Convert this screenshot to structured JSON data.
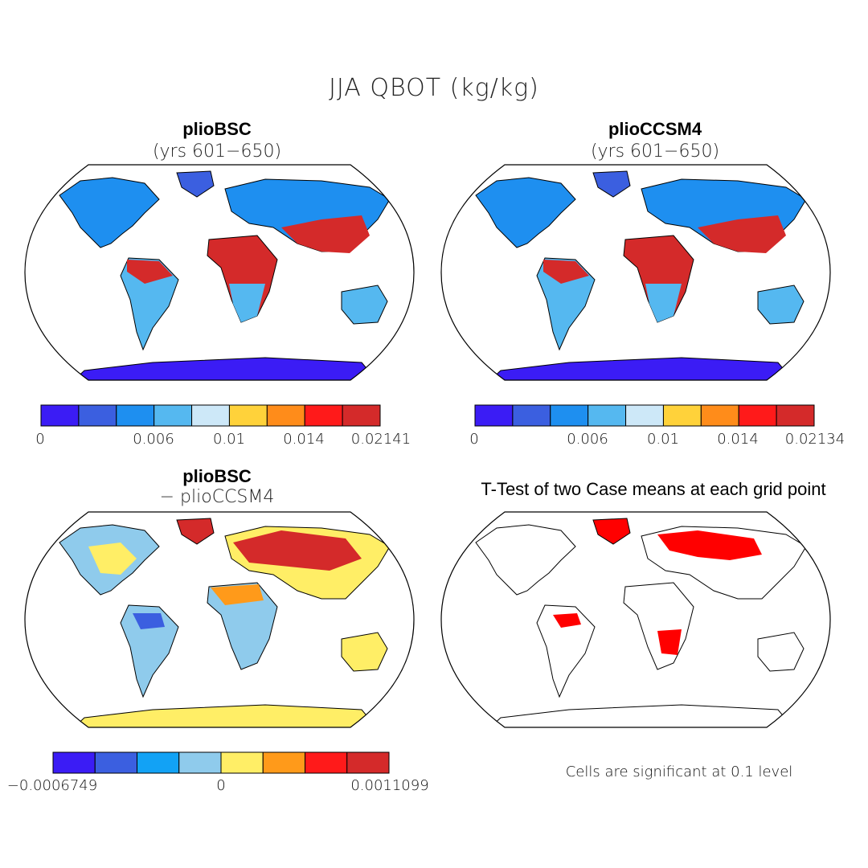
{
  "title": "JJA QBOT (kg/kg)",
  "panels": {
    "top_left": {
      "title": "plioBSC",
      "subtitle": "(yrs 601−650)"
    },
    "top_right": {
      "title": "plioCCSM4",
      "subtitle": "(yrs 601−650)"
    },
    "bottom_left": {
      "title": "plioBSC",
      "subtitle": "− plioCCSM4"
    },
    "bottom_right": {
      "title": "T-Test of two Case means at each grid point",
      "note": "Cells are significant at 0.1 level",
      "significance_color": "#ff0000"
    }
  },
  "colorbars": {
    "top_left": {
      "colors": [
        "#3b1cf5",
        "#3b5fe0",
        "#1e8ff0",
        "#55b8f0",
        "#cde8f8",
        "#ffd23a",
        "#ff8c1a",
        "#ff1a1a",
        "#d42a2a"
      ],
      "labels": [
        "0",
        "0.006",
        "0.01",
        "0.014",
        "0.02141"
      ]
    },
    "top_right": {
      "colors": [
        "#3b1cf5",
        "#3b5fe0",
        "#1e8ff0",
        "#55b8f0",
        "#cde8f8",
        "#ffd23a",
        "#ff8c1a",
        "#ff1a1a",
        "#d42a2a"
      ],
      "labels": [
        "0",
        "0.006",
        "0.01",
        "0.014",
        "0.02134"
      ]
    },
    "bottom_left": {
      "colors": [
        "#3b1cf5",
        "#3b5fe0",
        "#12a2f5",
        "#8fcbec",
        "#ffee66",
        "#ff9a1a",
        "#ff1a1a",
        "#d42a2a"
      ],
      "labels": [
        "−0.0006749",
        "0",
        "0.0011099"
      ]
    }
  }
}
